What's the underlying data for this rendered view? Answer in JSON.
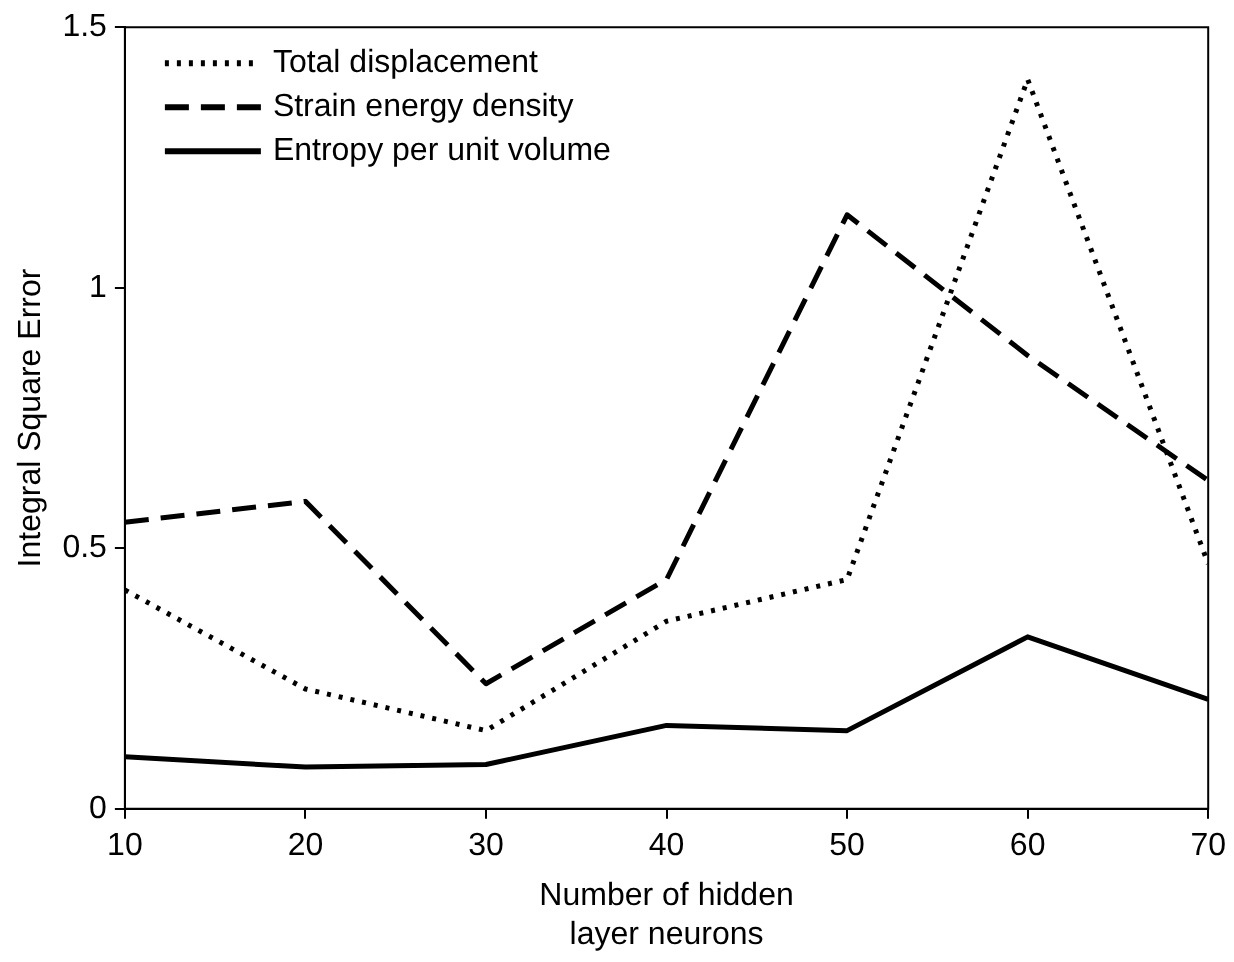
{
  "chart_data": {
    "type": "line",
    "xlabel": "Number of hidden\nlayer neurons",
    "ylabel": "Integral Square Error",
    "x": [
      10,
      20,
      30,
      40,
      50,
      60,
      70
    ],
    "series": [
      {
        "name": "Total displacement",
        "color": "#000000",
        "line_style": "dotted",
        "values": [
          0.42,
          0.23,
          0.15,
          0.36,
          0.44,
          1.4,
          0.47
        ]
      },
      {
        "name": "Strain energy density",
        "color": "#000000",
        "line_style": "dashed",
        "values": [
          0.55,
          0.59,
          0.24,
          0.44,
          1.14,
          0.87,
          0.63
        ]
      },
      {
        "name": "Entropy per unit volume",
        "color": "#000000",
        "line_style": "solid",
        "values": [
          0.1,
          0.08,
          0.085,
          0.16,
          0.15,
          0.33,
          0.21
        ]
      }
    ],
    "xlim": [
      10,
      70
    ],
    "xticks": [
      10,
      20,
      30,
      40,
      50,
      60,
      70
    ],
    "ylim": [
      0,
      1.5
    ],
    "yticks": [
      0,
      0.5,
      1,
      1.5
    ],
    "grid": false,
    "legend": "top left",
    "marker": "none"
  }
}
